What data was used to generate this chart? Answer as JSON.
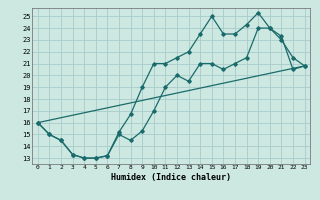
{
  "xlabel": "Humidex (Indice chaleur)",
  "bg_color": "#cce8e0",
  "grid_color": "#a8cccc",
  "line_color": "#1a6b6b",
  "xlim": [
    -0.5,
    23.5
  ],
  "ylim": [
    12.5,
    25.7
  ],
  "yticks": [
    13,
    14,
    15,
    16,
    17,
    18,
    19,
    20,
    21,
    22,
    23,
    24,
    25
  ],
  "xticks": [
    0,
    1,
    2,
    3,
    4,
    5,
    6,
    7,
    8,
    9,
    10,
    11,
    12,
    13,
    14,
    15,
    16,
    17,
    18,
    19,
    20,
    21,
    22,
    23
  ],
  "line1_x": [
    0,
    1,
    2,
    3,
    4,
    5,
    6,
    7,
    8,
    9,
    10,
    11,
    12,
    13,
    14,
    15,
    16,
    17,
    18,
    19,
    20,
    21,
    22,
    23
  ],
  "line1_y": [
    16,
    15,
    14.5,
    13.3,
    13.0,
    13.0,
    13.2,
    15.0,
    14.5,
    15.3,
    17.0,
    19.0,
    20.0,
    19.5,
    21.0,
    21.0,
    20.5,
    21.0,
    21.5,
    24.0,
    24.0,
    23.3,
    20.5,
    20.8
  ],
  "line2_x": [
    0,
    1,
    2,
    3,
    4,
    5,
    6,
    7,
    8,
    9,
    10,
    11,
    12,
    13,
    14,
    15,
    16,
    17,
    18,
    19,
    20,
    21,
    22,
    23
  ],
  "line2_y": [
    16,
    15,
    14.5,
    13.3,
    13.0,
    13.0,
    13.2,
    15.2,
    16.7,
    19.0,
    21.0,
    21.0,
    21.5,
    22.0,
    23.5,
    25.0,
    23.5,
    23.5,
    24.3,
    25.3,
    24.0,
    23.0,
    21.5,
    20.8
  ],
  "line3_x": [
    0,
    23
  ],
  "line3_y": [
    16,
    20.8
  ]
}
